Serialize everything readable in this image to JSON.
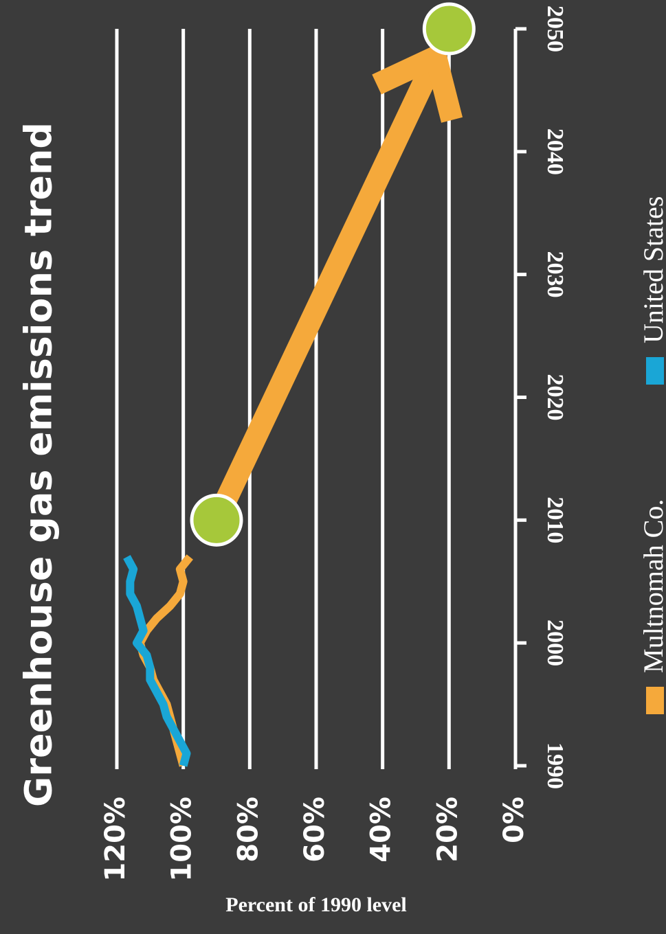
{
  "chart_data": {
    "type": "line",
    "title": "Greenhouse gas emissions trend",
    "y_label": "Percent of 1990 level",
    "x": [
      1990,
      1991,
      1992,
      1993,
      1994,
      1995,
      1996,
      1997,
      1998,
      1999,
      2000,
      2001,
      2002,
      2003,
      2004,
      2005,
      2006,
      2007
    ],
    "series": [
      {
        "name": "Multnomah Co.",
        "color": "#f5a93b",
        "values": [
          100,
          101,
          102,
          103,
          104,
          105,
          107,
          109,
          110,
          112,
          113,
          111,
          108,
          104,
          101,
          100,
          101,
          98
        ]
      },
      {
        "name": "United States",
        "color": "#1aa6d6",
        "values": [
          100,
          99,
          101,
          103,
          105,
          106,
          108,
          110,
          110,
          111,
          114,
          112,
          113,
          114,
          116,
          116,
          115,
          117
        ]
      }
    ],
    "markers": {
      "x": [
        2010,
        2050
      ],
      "values": [
        90,
        20
      ],
      "color": "#a6c83a"
    },
    "xlim": [
      1990,
      2050
    ],
    "xticks": [
      1990,
      2000,
      2010,
      2020,
      2030,
      2040,
      2050
    ],
    "ylim": [
      0,
      120
    ],
    "yticks": [
      {
        "value": 0,
        "label": "0%"
      },
      {
        "value": 20,
        "label": "20%"
      },
      {
        "value": 40,
        "label": "40%"
      },
      {
        "value": 60,
        "label": "60%"
      },
      {
        "value": 80,
        "label": "80%"
      },
      {
        "value": 100,
        "label": "100%"
      },
      {
        "value": 120,
        "label": "120%"
      }
    ],
    "grid": true
  }
}
